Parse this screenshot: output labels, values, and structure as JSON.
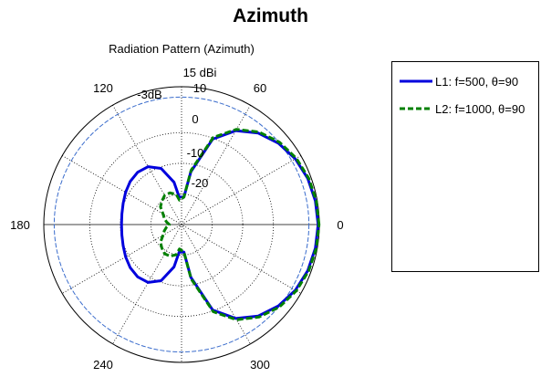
{
  "figure": {
    "title": "Azimuth"
  },
  "chart_data": {
    "type": "polar",
    "title": "Radiation Pattern (Azimuth)",
    "unit": "dBi",
    "rlim": [
      -30,
      15
    ],
    "radial_ticks": [
      "15 dBi",
      "10",
      "0",
      "-10",
      "-20"
    ],
    "angle_ticks": [
      "0",
      "60",
      "120",
      "180",
      "240",
      "300"
    ],
    "threshold_label": "-3dB",
    "threshold_value": 11.6,
    "grid": true,
    "legend_position": "right",
    "colors": {
      "L1": "#0000dd",
      "L2": "#008000",
      "threshold": "#3a6ccc"
    },
    "series": [
      {
        "name": "L1: f=500, θ=90",
        "style": "solid",
        "theta_deg": [
          0,
          10,
          20,
          30,
          40,
          50,
          60,
          70,
          80,
          85,
          95,
          100,
          110,
          120,
          130,
          140,
          150,
          160,
          170,
          180,
          190,
          200,
          210,
          220,
          230,
          240,
          250,
          260,
          265,
          275,
          280,
          290,
          300,
          310,
          320,
          330,
          340,
          350,
          360
        ],
        "gain_dbi": [
          14.6,
          14.4,
          13.9,
          12.9,
          11.3,
          9.0,
          5.4,
          -0.3,
          -12.5,
          -21.0,
          -21.0,
          -16.0,
          -10.5,
          -8.2,
          -7.7,
          -8.1,
          -8.9,
          -9.7,
          -10.2,
          -10.4,
          -10.2,
          -9.7,
          -8.9,
          -8.1,
          -7.7,
          -8.2,
          -10.5,
          -16.0,
          -21.0,
          -21.0,
          -12.5,
          -0.3,
          5.4,
          9.0,
          11.3,
          12.9,
          13.9,
          14.4,
          14.6
        ]
      },
      {
        "name": "L2: f=1000, θ=90",
        "style": "dashed",
        "theta_deg": [
          0,
          10,
          20,
          30,
          40,
          50,
          60,
          70,
          80,
          85,
          95,
          100,
          110,
          120,
          130,
          140,
          150,
          160,
          170,
          180,
          190,
          200,
          210,
          220,
          230,
          240,
          250,
          260,
          265,
          275,
          280,
          290,
          300,
          310,
          320,
          330,
          340,
          350,
          360
        ],
        "gain_dbi": [
          14.9,
          14.7,
          14.2,
          13.3,
          11.8,
          9.4,
          5.9,
          0.3,
          -12.0,
          -21.0,
          -22.0,
          -20.0,
          -19.0,
          -19.0,
          -20.0,
          -21.0,
          -23.0,
          -24.0,
          -25.0,
          -26.0,
          -25.0,
          -24.0,
          -23.0,
          -21.0,
          -20.0,
          -19.0,
          -19.0,
          -20.0,
          -22.0,
          -21.0,
          -12.0,
          0.3,
          5.9,
          9.4,
          11.8,
          13.3,
          14.2,
          14.7,
          14.9
        ]
      }
    ]
  }
}
